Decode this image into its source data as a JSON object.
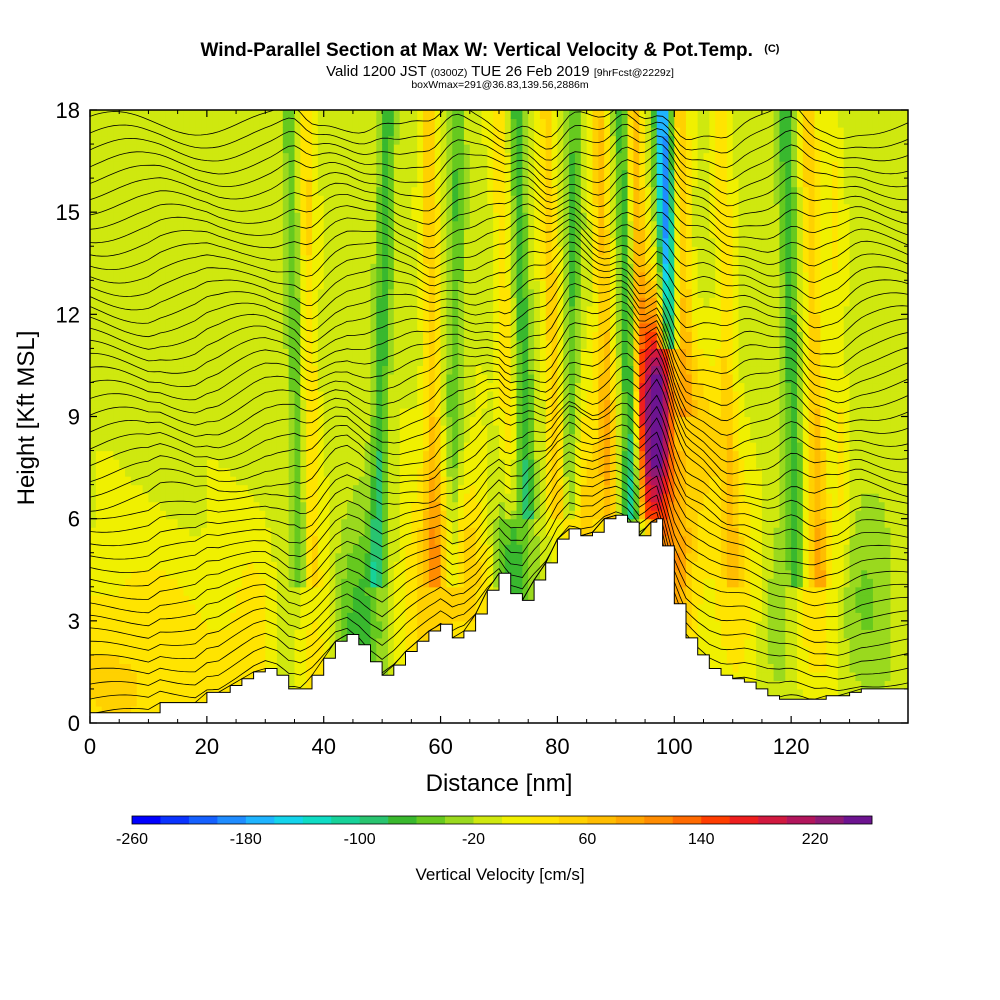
{
  "chart_data": {
    "type": "heatmap",
    "title": "Wind-Parallel Section at Max W: Vertical Velocity & Pot.Temp.",
    "title_sup": "(C)",
    "subtitle_parts": [
      "Valid 1200 JST ",
      "(0300Z)",
      " TUE 26 Feb 2019 ",
      "[9hrFcst@2229z]"
    ],
    "subtitle2": "boxWmax=291@36.83,139.56,2886m",
    "xlabel": "Distance [nm]",
    "ylabel": "Height [Kft MSL]",
    "xlim": [
      0,
      140
    ],
    "ylim": [
      0,
      18
    ],
    "xticks": [
      0,
      20,
      40,
      60,
      80,
      100,
      120
    ],
    "xtick_labels": [
      "0",
      "20",
      "40",
      "60",
      "80",
      "100",
      "120"
    ],
    "yticks": [
      0,
      3,
      6,
      9,
      12,
      15,
      18
    ],
    "ytick_labels": [
      "0",
      "3",
      "6",
      "9",
      "12",
      "15",
      "18"
    ],
    "colorbar": {
      "label": "Vertical Velocity [cm/s]",
      "range": [
        -260,
        260
      ],
      "step": 20,
      "tick_values": [
        -260,
        -180,
        -100,
        -20,
        60,
        140,
        220
      ],
      "tick_labels": [
        "-260",
        "-180",
        "-100",
        "-20",
        "60",
        "140",
        "220"
      ],
      "colors": [
        "#0000ff",
        "#0a33ff",
        "#1560ff",
        "#1f8cff",
        "#1fb4ff",
        "#14d4ec",
        "#0fdcc4",
        "#17d299",
        "#29c470",
        "#39b82e",
        "#66c91f",
        "#9ad91e",
        "#cfe80f",
        "#f0f000",
        "#ffe400",
        "#ffd100",
        "#ffbd00",
        "#ffa600",
        "#ff8c00",
        "#ff6a00",
        "#ff3d00",
        "#ee1e1e",
        "#d1193f",
        "#b2155c",
        "#8e1a74",
        "#6d1490"
      ]
    },
    "terrain_profile": {
      "x": [
        0,
        2,
        4,
        6,
        8,
        10,
        12,
        14,
        16,
        18,
        20,
        22,
        24,
        26,
        28,
        30,
        32,
        34,
        36,
        38,
        40,
        42,
        44,
        46,
        48,
        50,
        52,
        54,
        56,
        58,
        60,
        62,
        64,
        66,
        68,
        70,
        72,
        74,
        76,
        78,
        80,
        82,
        84,
        86,
        88,
        90,
        92,
        94,
        96,
        97,
        98,
        100,
        102,
        104,
        106,
        108,
        110,
        112,
        114,
        116,
        118,
        120,
        122,
        124,
        126,
        128,
        130,
        132,
        134,
        136,
        138,
        140
      ],
      "y": [
        0.3,
        0.3,
        0.3,
        0.3,
        0.3,
        0.3,
        0.6,
        0.6,
        0.6,
        0.6,
        0.9,
        0.9,
        1.1,
        1.3,
        1.5,
        1.6,
        1.4,
        1.0,
        1.0,
        1.4,
        1.9,
        2.4,
        2.6,
        2.3,
        1.8,
        1.4,
        1.7,
        2.1,
        2.4,
        2.7,
        2.9,
        2.5,
        2.7,
        3.2,
        3.9,
        4.4,
        3.8,
        3.6,
        4.2,
        4.7,
        5.4,
        5.7,
        5.5,
        5.6,
        6.0,
        6.1,
        5.9,
        5.5,
        5.9,
        6.0,
        5.2,
        3.5,
        2.5,
        2.0,
        1.6,
        1.4,
        1.3,
        1.2,
        1.0,
        0.8,
        0.7,
        0.7,
        0.7,
        0.7,
        0.8,
        0.8,
        0.9,
        1.0,
        1.0,
        1.0,
        1.0,
        1.0
      ]
    },
    "w_features": [
      {
        "x": 0,
        "z": 0.5,
        "w": 30,
        "width": 30
      },
      {
        "x": 9,
        "z": 2.5,
        "w": 25,
        "width": 14
      },
      {
        "x": 30,
        "z": 2.5,
        "w": 35,
        "width": 6
      },
      {
        "x": 38,
        "z": 2.5,
        "w": 45,
        "width": 5
      },
      {
        "x": 34,
        "z": 2.5,
        "w": -60,
        "width": 4
      },
      {
        "x": 46,
        "z": 3.0,
        "w": -70,
        "width": 5
      },
      {
        "x": 58,
        "z": 4.0,
        "w": 60,
        "width": 5
      },
      {
        "x": 66,
        "z": 4.5,
        "w": 50,
        "width": 5
      },
      {
        "x": 72,
        "z": 4.5,
        "w": -70,
        "width": 4
      },
      {
        "x": 86,
        "z": 6.5,
        "w": 60,
        "width": 5
      },
      {
        "x": 92,
        "z": 6.0,
        "w": -60,
        "width": 4
      },
      {
        "x": 97,
        "z": 9.0,
        "w": 291,
        "width": 2.5
      },
      {
        "x": 100,
        "z": 4.0,
        "w": 90,
        "width": 3
      },
      {
        "x": 104,
        "z": 8.0,
        "w": 55,
        "width": 5
      },
      {
        "x": 112,
        "z": 4.0,
        "w": 50,
        "width": 5
      },
      {
        "x": 118,
        "z": 4.0,
        "w": -50,
        "width": 5
      },
      {
        "x": 124,
        "z": 4.0,
        "w": 60,
        "width": 5
      },
      {
        "x": 132,
        "z": 4.0,
        "w": -40,
        "width": 6
      }
    ],
    "w_bands": [
      {
        "x_top": 34,
        "x_bot": 36,
        "w": -50,
        "zmin": 4
      },
      {
        "x_top": 37,
        "x_bot": 38,
        "w": 45,
        "zmin": 4
      },
      {
        "x_top": 51,
        "x_bot": 49,
        "w": -70,
        "zmin": 4
      },
      {
        "x_top": 58,
        "x_bot": 59,
        "w": 60,
        "zmin": 4
      },
      {
        "x_top": 63,
        "x_bot": 62,
        "w": -55,
        "zmin": 4
      },
      {
        "x_top": 70,
        "x_bot": 72,
        "w": 40,
        "zmin": 6
      },
      {
        "x_top": 73,
        "x_bot": 75,
        "w": -65,
        "zmin": 6
      },
      {
        "x_top": 78,
        "x_bot": 80,
        "w": 55,
        "zmin": 6
      },
      {
        "x_top": 83,
        "x_bot": 82,
        "w": -60,
        "zmin": 6
      },
      {
        "x_top": 87,
        "x_bot": 89,
        "w": 70,
        "zmin": 6
      },
      {
        "x_top": 91,
        "x_bot": 93,
        "w": -75,
        "zmin": 6
      },
      {
        "x_top": 93,
        "x_bot": 95,
        "w": 85,
        "zmin": 6
      },
      {
        "x_top": 98,
        "x_bot": 99,
        "w": -190,
        "zmin": 11
      },
      {
        "x_top": 101,
        "x_bot": 102,
        "w": 60,
        "zmin": 9
      },
      {
        "x_top": 108,
        "x_bot": 110,
        "w": 40,
        "zmin": 4
      },
      {
        "x_top": 119,
        "x_bot": 121,
        "w": -70,
        "zmin": 4
      },
      {
        "x_top": 123,
        "x_bot": 125,
        "w": 60,
        "zmin": 4
      },
      {
        "x_top": 127,
        "x_bot": 129,
        "w": 25,
        "zmin": 4
      }
    ],
    "theta_levels": [
      0,
      0.4,
      0.8,
      1.2,
      1.6,
      2.0,
      2.4,
      2.8,
      3.2,
      3.6,
      4.0,
      4.4,
      4.8,
      5.2,
      5.6,
      6.0,
      6.4,
      6.8,
      7.2,
      7.6,
      8.0,
      8.4,
      8.8,
      9.2,
      9.6,
      10.0,
      10.4,
      10.8,
      11.2,
      11.6,
      12.0,
      12.4,
      12.8,
      13.2,
      13.6,
      14.0,
      14.4,
      14.8,
      15.2,
      15.6,
      16.0,
      16.4,
      16.8,
      17.2,
      17.6
    ]
  }
}
